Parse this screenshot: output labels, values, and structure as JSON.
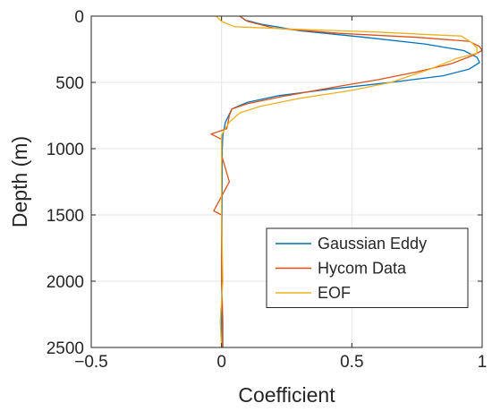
{
  "chart_data": {
    "type": "line",
    "title": "",
    "xlabel": "Coefficient",
    "ylabel": "Depth (m)",
    "xlim": [
      -0.5,
      1
    ],
    "ylim": [
      0,
      2500
    ],
    "y_reversed": true,
    "grid": true,
    "x_ticks": [
      -0.5,
      0,
      0.5,
      1
    ],
    "x_tick_labels": [
      "−0.5",
      "0",
      "0.5",
      "1"
    ],
    "y_ticks": [
      0,
      500,
      1000,
      1500,
      2000,
      2500
    ],
    "y_tick_labels": [
      "0",
      "500",
      "1000",
      "1500",
      "2000",
      "2500"
    ],
    "legend_position": "lower-right",
    "colors": {
      "axis": "#262626",
      "grid": "#e6e6e6"
    },
    "series": [
      {
        "name": "Gaussian Eddy",
        "color": "#0072bd",
        "points": [
          [
            0.07,
            0
          ],
          [
            0.09,
            30
          ],
          [
            0.15,
            60
          ],
          [
            0.3,
            110
          ],
          [
            0.55,
            160
          ],
          [
            0.78,
            210
          ],
          [
            0.93,
            260
          ],
          [
            0.98,
            310
          ],
          [
            0.99,
            350
          ],
          [
            0.95,
            400
          ],
          [
            0.85,
            450
          ],
          [
            0.65,
            500
          ],
          [
            0.42,
            550
          ],
          [
            0.22,
            600
          ],
          [
            0.1,
            650
          ],
          [
            0.04,
            700
          ],
          [
            0.015,
            800
          ],
          [
            0.005,
            900
          ],
          [
            0.003,
            1000
          ],
          [
            0.002,
            1500
          ],
          [
            0.001,
            2000
          ],
          [
            0.0,
            2500
          ]
        ]
      },
      {
        "name": "Hycom Data",
        "color": "#d95319",
        "points": [
          [
            0.07,
            0
          ],
          [
            0.1,
            40
          ],
          [
            0.2,
            90
          ],
          [
            0.45,
            130
          ],
          [
            0.75,
            160
          ],
          [
            0.95,
            190
          ],
          [
            0.99,
            230
          ],
          [
            1.0,
            260
          ],
          [
            0.96,
            300
          ],
          [
            0.88,
            360
          ],
          [
            0.75,
            420
          ],
          [
            0.6,
            480
          ],
          [
            0.45,
            530
          ],
          [
            0.25,
            600
          ],
          [
            0.1,
            660
          ],
          [
            0.04,
            700
          ],
          [
            0.03,
            750
          ],
          [
            0.02,
            850
          ],
          [
            -0.04,
            890
          ],
          [
            0.0,
            930
          ],
          [
            0.0,
            1050
          ],
          [
            0.03,
            1250
          ],
          [
            -0.03,
            1470
          ],
          [
            0.0,
            1500
          ],
          [
            0.0,
            2000
          ],
          [
            0.005,
            2300
          ],
          [
            0.005,
            2500
          ]
        ]
      },
      {
        "name": "EOF",
        "color": "#edb120",
        "points": [
          [
            -0.02,
            0
          ],
          [
            0.0,
            40
          ],
          [
            0.05,
            80
          ],
          [
            0.3,
            100
          ],
          [
            0.6,
            120
          ],
          [
            0.8,
            140
          ],
          [
            0.92,
            150
          ],
          [
            0.96,
            200
          ],
          [
            0.98,
            240
          ],
          [
            0.98,
            280
          ],
          [
            0.9,
            320
          ],
          [
            0.8,
            400
          ],
          [
            0.65,
            500
          ],
          [
            0.5,
            560
          ],
          [
            0.3,
            620
          ],
          [
            0.15,
            680
          ],
          [
            0.07,
            730
          ],
          [
            0.03,
            800
          ],
          [
            0.01,
            860
          ],
          [
            0.0,
            900
          ],
          [
            0.0,
            1000
          ],
          [
            0.0,
            1500
          ],
          [
            0.005,
            2000
          ],
          [
            -0.005,
            2300
          ],
          [
            0.0,
            2500
          ]
        ]
      }
    ]
  }
}
